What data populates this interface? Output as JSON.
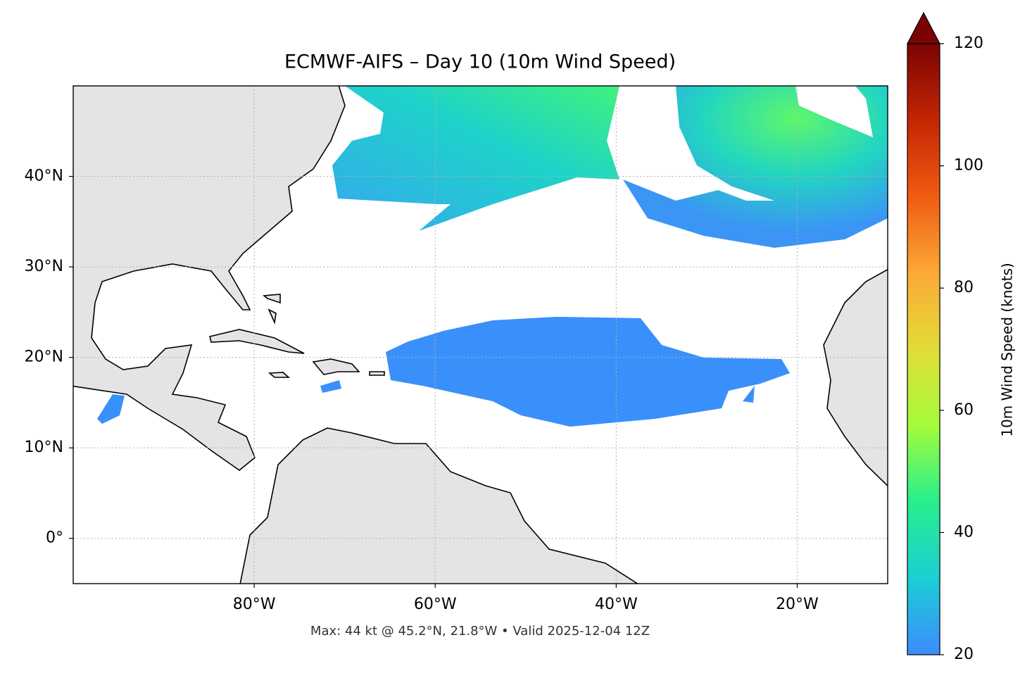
{
  "chart_data": {
    "type": "map",
    "title": "ECMWF-AIFS – Day 10 (10m Wind Speed)",
    "footnote": "Max: 44 kt @ 45.2°N, 21.8°W • Valid 2025-12-04 12Z",
    "xlim": [
      -100,
      -10
    ],
    "ylim": [
      -5,
      50
    ],
    "grid": true,
    "xticks": [
      {
        "value": -80,
        "label": "80°W"
      },
      {
        "value": -60,
        "label": "60°W"
      },
      {
        "value": -40,
        "label": "40°W"
      },
      {
        "value": -20,
        "label": "20°W"
      }
    ],
    "yticks": [
      {
        "value": 0,
        "label": "0°"
      },
      {
        "value": 10,
        "label": "10°N"
      },
      {
        "value": 20,
        "label": "20°N"
      },
      {
        "value": 30,
        "label": "30°N"
      },
      {
        "value": 40,
        "label": "40°N"
      }
    ],
    "colorbar": {
      "label": "10m Wind Speed (knots)",
      "lim": [
        20,
        120
      ],
      "ticks": [
        20,
        40,
        60,
        80,
        100,
        120
      ],
      "extend": "max",
      "colors": [
        "#3d8bff",
        "#1bcfd4",
        "#27ef8d",
        "#a4fc3b",
        "#e2dc38",
        "#fca935",
        "#f05b12",
        "#c42503",
        "#7a0403"
      ]
    }
  }
}
